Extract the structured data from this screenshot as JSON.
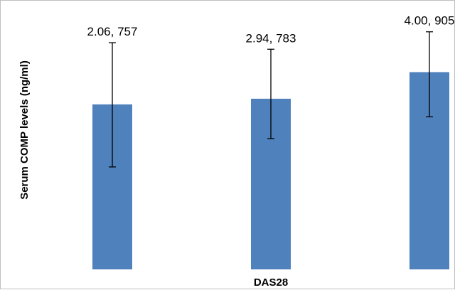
{
  "chart_data": {
    "type": "bar",
    "xlabel": "DAS28",
    "ylabel": "Serum COMP levels (ng/ml)",
    "categories": [
      "",
      "",
      ""
    ],
    "values": [
      757,
      783,
      905
    ],
    "error_low": [
      470,
      600,
      700
    ],
    "error_high": [
      1040,
      1010,
      1090
    ],
    "data_labels": [
      "2.06, 757",
      "2.94, 783",
      "4.00, 905"
    ],
    "ylim": [
      0,
      1200
    ],
    "grid": false,
    "legend": false,
    "colors": {
      "bar": "#4f81bd",
      "error_bar": "#000000",
      "frame": "#bfbfbf"
    }
  }
}
